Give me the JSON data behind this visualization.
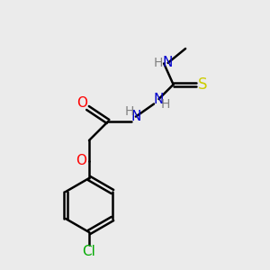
{
  "bg_color": "#ebebeb",
  "atom_colors": {
    "C": "#000000",
    "H": "#808080",
    "N": "#0000cd",
    "O": "#ff0000",
    "S": "#cccc00",
    "Cl": "#00aa00"
  },
  "bond_color": "#000000",
  "bond_width": 1.8,
  "font_size": 10,
  "fig_size": [
    3.0,
    3.0
  ],
  "dpi": 100
}
